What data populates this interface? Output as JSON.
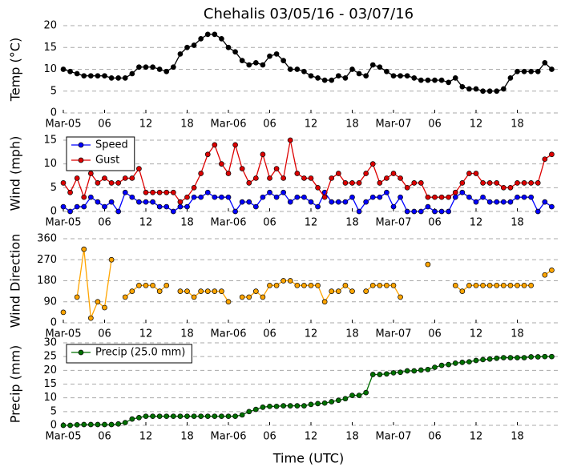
{
  "chart_data": [
    {
      "type": "line",
      "title": "Chehalis 03/05/16 - 03/07/16",
      "ylabel": "Temp (°C)",
      "x": [
        0,
        1,
        2,
        3,
        4,
        5,
        6,
        7,
        8,
        9,
        10,
        11,
        12,
        13,
        14,
        15,
        16,
        17,
        18,
        19,
        20,
        21,
        22,
        23,
        24,
        25,
        26,
        27,
        28,
        29,
        30,
        31,
        32,
        33,
        34,
        35,
        36,
        37,
        38,
        39,
        40,
        41,
        42,
        43,
        44,
        45,
        46,
        47,
        48,
        49,
        50,
        51,
        52,
        53,
        54,
        55,
        56,
        57,
        58,
        59,
        60,
        61,
        62,
        63,
        64,
        65,
        66,
        67,
        68,
        69,
        70,
        71
      ],
      "series": [
        {
          "color": "#000000",
          "values": [
            10,
            9.5,
            9,
            8.5,
            8.5,
            8.5,
            8.5,
            8,
            8,
            8,
            9,
            10.5,
            10.5,
            10.5,
            10,
            9.5,
            10.5,
            13.5,
            15,
            15.5,
            17,
            18,
            18,
            17,
            15,
            14,
            12,
            11,
            11.5,
            11,
            13,
            13.5,
            12,
            10,
            10,
            9.5,
            8.5,
            8,
            7.5,
            7.5,
            8.5,
            8,
            10,
            9,
            8.5,
            11,
            10.5,
            9.5,
            8.5,
            8.5,
            8.5,
            8,
            7.5,
            7.5,
            7.5,
            7.5,
            7,
            8,
            6,
            5.5,
            5.5,
            5,
            5,
            5,
            5.5,
            8,
            9.5,
            9.5,
            9.5,
            9.5,
            11.5,
            10
          ]
        }
      ],
      "xlim": [
        0,
        72
      ],
      "xticks": [
        {
          "value": 0,
          "label": "Mar-05"
        },
        {
          "value": 6,
          "label": "06"
        },
        {
          "value": 12,
          "label": "12"
        },
        {
          "value": 18,
          "label": "18"
        },
        {
          "value": 24,
          "label": "Mar-06"
        },
        {
          "value": 30,
          "label": "06"
        },
        {
          "value": 36,
          "label": "12"
        },
        {
          "value": 42,
          "label": "18"
        },
        {
          "value": 48,
          "label": "Mar-07"
        },
        {
          "value": 54,
          "label": "06"
        },
        {
          "value": 60,
          "label": "12"
        },
        {
          "value": 66,
          "label": "18"
        }
      ],
      "ylim": [
        0,
        20
      ],
      "yticks": [
        0,
        5,
        10,
        15,
        20
      ],
      "grid": true
    },
    {
      "type": "line",
      "ylabel": "Wind (mph)",
      "x": [
        0,
        1,
        2,
        3,
        4,
        5,
        6,
        7,
        8,
        9,
        10,
        11,
        12,
        13,
        14,
        15,
        16,
        17,
        18,
        19,
        20,
        21,
        22,
        23,
        24,
        25,
        26,
        27,
        28,
        29,
        30,
        31,
        32,
        33,
        34,
        35,
        36,
        37,
        38,
        39,
        40,
        41,
        42,
        43,
        44,
        45,
        46,
        47,
        48,
        49,
        50,
        51,
        52,
        53,
        54,
        55,
        56,
        57,
        58,
        59,
        60,
        61,
        62,
        63,
        64,
        65,
        66,
        67,
        68,
        69,
        70,
        71
      ],
      "series": [
        {
          "name": "Speed",
          "color": "#0000ff",
          "values": [
            1,
            0,
            1,
            1,
            3,
            2,
            1,
            2,
            0,
            4,
            3,
            2,
            2,
            2,
            1,
            1,
            0,
            1,
            1,
            3,
            3,
            4,
            3,
            3,
            3,
            0,
            2,
            2,
            1,
            3,
            4,
            3,
            4,
            2,
            3,
            3,
            2,
            1,
            4,
            2,
            2,
            2,
            3,
            0,
            2,
            3,
            3,
            4,
            1,
            3,
            0,
            0,
            0,
            1,
            0,
            0,
            0,
            3,
            4,
            3,
            2,
            3,
            2,
            2,
            2,
            2,
            3,
            3,
            3,
            0,
            2,
            1
          ]
        },
        {
          "name": "Gust",
          "color": "#dd0000",
          "values": [
            6,
            4,
            7,
            3,
            8,
            6,
            7,
            6,
            6,
            7,
            7,
            9,
            4,
            4,
            4,
            4,
            4,
            2,
            3,
            5,
            8,
            12,
            14,
            10,
            8,
            14,
            9,
            6,
            7,
            12,
            7,
            9,
            7,
            15,
            8,
            7,
            7,
            5,
            3,
            7,
            8,
            6,
            6,
            6,
            8,
            10,
            6,
            7,
            8,
            7,
            5,
            6,
            6,
            3,
            3,
            3,
            3,
            4,
            6,
            8,
            8,
            6,
            6,
            6,
            5,
            5,
            6,
            6,
            6,
            6,
            11,
            12
          ]
        }
      ],
      "xlim": [
        0,
        72
      ],
      "xticks": [
        {
          "value": 0,
          "label": "Mar-05"
        },
        {
          "value": 6,
          "label": "06"
        },
        {
          "value": 12,
          "label": "12"
        },
        {
          "value": 18,
          "label": "18"
        },
        {
          "value": 24,
          "label": "Mar-06"
        },
        {
          "value": 30,
          "label": "06"
        },
        {
          "value": 36,
          "label": "12"
        },
        {
          "value": 42,
          "label": "18"
        },
        {
          "value": 48,
          "label": "Mar-07"
        },
        {
          "value": 54,
          "label": "06"
        },
        {
          "value": 60,
          "label": "12"
        },
        {
          "value": 66,
          "label": "18"
        }
      ],
      "ylim": [
        0,
        16
      ],
      "yticks": [
        0,
        5,
        10,
        15
      ],
      "grid": true,
      "legend": "upper left"
    },
    {
      "type": "line",
      "ylabel": "Wind Direction",
      "x": [
        0,
        1,
        2,
        3,
        4,
        5,
        6,
        7,
        8,
        9,
        10,
        11,
        12,
        13,
        14,
        15,
        16,
        17,
        18,
        19,
        20,
        21,
        22,
        23,
        24,
        25,
        26,
        27,
        28,
        29,
        30,
        31,
        32,
        33,
        34,
        35,
        36,
        37,
        38,
        39,
        40,
        41,
        42,
        43,
        44,
        45,
        46,
        47,
        48,
        49,
        50,
        51,
        52,
        53,
        54,
        55,
        56,
        57,
        58,
        59,
        60,
        61,
        62,
        63,
        64,
        65,
        66,
        67,
        68,
        69,
        70,
        71
      ],
      "series": [
        {
          "color": "#ffa500",
          "values": [
            45,
            null,
            110,
            315,
            20,
            90,
            65,
            270,
            null,
            110,
            135,
            160,
            160,
            160,
            135,
            160,
            null,
            135,
            135,
            110,
            135,
            135,
            135,
            135,
            90,
            null,
            110,
            110,
            135,
            110,
            160,
            160,
            180,
            180,
            160,
            160,
            160,
            160,
            90,
            135,
            135,
            160,
            135,
            null,
            135,
            160,
            160,
            160,
            160,
            110,
            null,
            null,
            null,
            250,
            null,
            null,
            null,
            160,
            135,
            160,
            160,
            160,
            160,
            160,
            160,
            160,
            160,
            160,
            160,
            null,
            205,
            225
          ]
        }
      ],
      "xlim": [
        0,
        72
      ],
      "xticks": [
        {
          "value": 0,
          "label": "Mar-05"
        },
        {
          "value": 6,
          "label": "06"
        },
        {
          "value": 12,
          "label": "12"
        },
        {
          "value": 18,
          "label": "18"
        },
        {
          "value": 24,
          "label": "Mar-06"
        },
        {
          "value": 30,
          "label": "06"
        },
        {
          "value": 36,
          "label": "12"
        },
        {
          "value": 42,
          "label": "18"
        },
        {
          "value": 48,
          "label": "Mar-07"
        },
        {
          "value": 54,
          "label": "06"
        },
        {
          "value": 60,
          "label": "12"
        },
        {
          "value": 66,
          "label": "18"
        }
      ],
      "ylim": [
        0,
        360
      ],
      "yticks": [
        0,
        90,
        180,
        270,
        360
      ],
      "grid": true
    },
    {
      "type": "line",
      "ylabel": "Precip (mm)",
      "xlabel": "Time (UTC)",
      "x": [
        0,
        1,
        2,
        3,
        4,
        5,
        6,
        7,
        8,
        9,
        10,
        11,
        12,
        13,
        14,
        15,
        16,
        17,
        18,
        19,
        20,
        21,
        22,
        23,
        24,
        25,
        26,
        27,
        28,
        29,
        30,
        31,
        32,
        33,
        34,
        35,
        36,
        37,
        38,
        39,
        40,
        41,
        42,
        43,
        44,
        45,
        46,
        47,
        48,
        49,
        50,
        51,
        52,
        53,
        54,
        55,
        56,
        57,
        58,
        59,
        60,
        61,
        62,
        63,
        64,
        65,
        66,
        67,
        68,
        69,
        70,
        71
      ],
      "series": [
        {
          "name": "Precip (25.0 mm)",
          "color": "#007000",
          "values": [
            0,
            0,
            0.2,
            0.3,
            0.3,
            0.3,
            0.3,
            0.3,
            0.5,
            1,
            2.3,
            2.8,
            3.3,
            3.3,
            3.3,
            3.3,
            3.3,
            3.3,
            3.3,
            3.3,
            3.3,
            3.3,
            3.3,
            3.3,
            3.3,
            3.3,
            3.8,
            5,
            5.8,
            6.6,
            6.9,
            6.9,
            7.1,
            7.1,
            7.1,
            7.1,
            7.6,
            7.9,
            8.1,
            8.6,
            9.1,
            9.7,
            10.9,
            10.9,
            11.9,
            18.5,
            18.5,
            18.7,
            19.1,
            19.3,
            19.8,
            19.8,
            20.1,
            20.3,
            21.1,
            21.8,
            22.1,
            22.6,
            22.9,
            23.1,
            23.6,
            23.9,
            24.1,
            24.4,
            24.6,
            24.6,
            24.6,
            24.6,
            24.9,
            24.9,
            25.0,
            25.0
          ]
        }
      ],
      "xlim": [
        0,
        72
      ],
      "xticks": [
        {
          "value": 0,
          "label": "Mar-05"
        },
        {
          "value": 6,
          "label": "06"
        },
        {
          "value": 12,
          "label": "12"
        },
        {
          "value": 18,
          "label": "18"
        },
        {
          "value": 24,
          "label": "Mar-06"
        },
        {
          "value": 30,
          "label": "06"
        },
        {
          "value": 36,
          "label": "12"
        },
        {
          "value": 42,
          "label": "18"
        },
        {
          "value": 48,
          "label": "Mar-07"
        },
        {
          "value": 54,
          "label": "06"
        },
        {
          "value": 60,
          "label": "12"
        },
        {
          "value": 66,
          "label": "18"
        }
      ],
      "ylim": [
        0,
        30
      ],
      "yticks": [
        0,
        5,
        10,
        15,
        20,
        25,
        30
      ],
      "grid": true,
      "legend": "upper left"
    }
  ]
}
